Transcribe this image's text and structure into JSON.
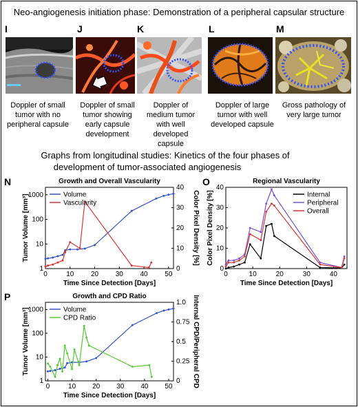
{
  "top_heading": "Neo-angiogenesis initiation phase: Demonstration of a peripheral capsular structure",
  "panels": [
    {
      "letter": "I",
      "caption": "Doppler of small tumor with no peripheral capsule"
    },
    {
      "letter": "J",
      "caption": "Doppler of small tumor showing early capsule development"
    },
    {
      "letter": "K",
      "caption": "Doppler of medium tumor with well developed capsule"
    },
    {
      "letter": "L",
      "caption": "Doppler of large tumor with well developed capsule"
    },
    {
      "letter": "M",
      "caption": "Gross pathology of very large tumor"
    }
  ],
  "middle_heading_line1": "Graphs from longitudinal studies: Kinetics of the four phases of",
  "middle_heading_line2": "development of  tumor-associated angiogenesis",
  "colors": {
    "blue": "#3355cc",
    "red": "#dd3333",
    "black": "#000000",
    "purple": "#7a4fd8",
    "green": "#55cc33"
  },
  "chart_data": [
    {
      "panel": "N",
      "type": "line",
      "title": "Growth and Overall Vascularity",
      "xlabel": "Time Since Detection [Days]",
      "ylabel_left": "Tumor Volume [mm³]",
      "ylabel_right": "Color Pixel Density [%]",
      "xlim": [
        0,
        52
      ],
      "xticks": [
        "0",
        "10",
        "20",
        "30",
        "40",
        "50"
      ],
      "ylim_left_log": [
        1,
        2000
      ],
      "yticks_left": [
        "1",
        "10",
        "100",
        "1000"
      ],
      "ylim_right": [
        0,
        40
      ],
      "yticks_right": [
        "0",
        "10",
        "20",
        "30",
        "40"
      ],
      "legend": "top-left",
      "series": [
        {
          "name": "Volume",
          "axis": "left",
          "x": [
            0,
            1,
            3,
            5,
            7,
            8,
            10,
            13,
            16,
            20,
            35,
            45,
            48,
            50,
            52
          ],
          "y": [
            2.5,
            2.6,
            2.8,
            3.2,
            3.6,
            5.5,
            6,
            6,
            6.5,
            9,
            220,
            700,
            900,
            1000,
            1100
          ]
        },
        {
          "name": "Vascularity",
          "axis": "right",
          "x": [
            0,
            1,
            3,
            5,
            7,
            8,
            10,
            14,
            16,
            35,
            42,
            43
          ],
          "y": [
            1,
            1.5,
            2,
            3,
            4,
            8,
            13,
            10,
            33,
            1.5,
            0.5,
            3
          ]
        }
      ]
    },
    {
      "panel": "O",
      "type": "line",
      "title": "Regional Vascularity",
      "xlabel": "Time Since Detection [Days]",
      "ylabel": "Color Pixel Density [%]",
      "xlim": [
        0,
        45
      ],
      "xticks": [
        "0",
        "10",
        "20",
        "30",
        "40"
      ],
      "ylim": [
        0,
        40
      ],
      "yticks": [
        "0",
        "10",
        "20",
        "30",
        "40"
      ],
      "legend": "top-right",
      "series": [
        {
          "name": "Internal",
          "x": [
            0,
            1,
            3,
            5,
            7,
            9,
            13,
            15,
            17,
            18,
            35,
            43,
            44
          ],
          "y": [
            0,
            0.5,
            1,
            2,
            3,
            12,
            5,
            21,
            22,
            16,
            0.5,
            0.3,
            2
          ]
        },
        {
          "name": "Peripheral",
          "x": [
            0,
            1,
            3,
            5,
            7,
            9,
            13,
            15,
            17,
            18,
            35,
            43,
            44
          ],
          "y": [
            2,
            4,
            4,
            5,
            7,
            20,
            18,
            32,
            39,
            36,
            3,
            0.5,
            6
          ]
        },
        {
          "name": "Overall",
          "x": [
            0,
            1,
            3,
            5,
            7,
            9,
            13,
            15,
            17,
            18,
            35,
            43,
            44
          ],
          "y": [
            1,
            3,
            3,
            4,
            6,
            17,
            14,
            28,
            32,
            31,
            2,
            0.5,
            5
          ]
        }
      ]
    },
    {
      "panel": "P",
      "type": "line",
      "title": "Growth and CPD Ratio",
      "xlabel": "Time Since Detection [Days]",
      "ylabel_left": "Tumor Volume [mm³]",
      "ylabel_right": "Internal CPD/Peripheral CPD",
      "xlim": [
        -1,
        52
      ],
      "xticks": [
        "0",
        "10",
        "20",
        "30",
        "40",
        "50"
      ],
      "ylim_left_log": [
        1,
        2000
      ],
      "yticks_left": [
        "1",
        "10",
        "100",
        "1000"
      ],
      "ylim_right": [
        0,
        1.0
      ],
      "yticks_right": [
        "0",
        "0.25",
        "0.5",
        "0.75",
        "1.0"
      ],
      "legend": "top-left",
      "series": [
        {
          "name": "Volume",
          "axis": "left",
          "x": [
            0,
            1,
            3,
            5,
            7,
            8,
            10,
            13,
            16,
            20,
            35,
            45,
            48,
            50,
            52
          ],
          "y": [
            2.5,
            2.6,
            2.8,
            3.2,
            3.6,
            5.5,
            6,
            6,
            6.5,
            9,
            220,
            700,
            900,
            1000,
            1100
          ]
        },
        {
          "name": "CPD Ratio",
          "axis": "right",
          "x": [
            0,
            1,
            3,
            4,
            5,
            6,
            7,
            8,
            10,
            11,
            13,
            15,
            16,
            17,
            35,
            42,
            43
          ],
          "y": [
            0.22,
            0.18,
            0.05,
            0.2,
            0.28,
            0.12,
            0.45,
            0.35,
            0.15,
            0.4,
            0.2,
            0.7,
            0.55,
            0.45,
            0.18,
            0.2,
            0.05
          ]
        }
      ]
    }
  ]
}
